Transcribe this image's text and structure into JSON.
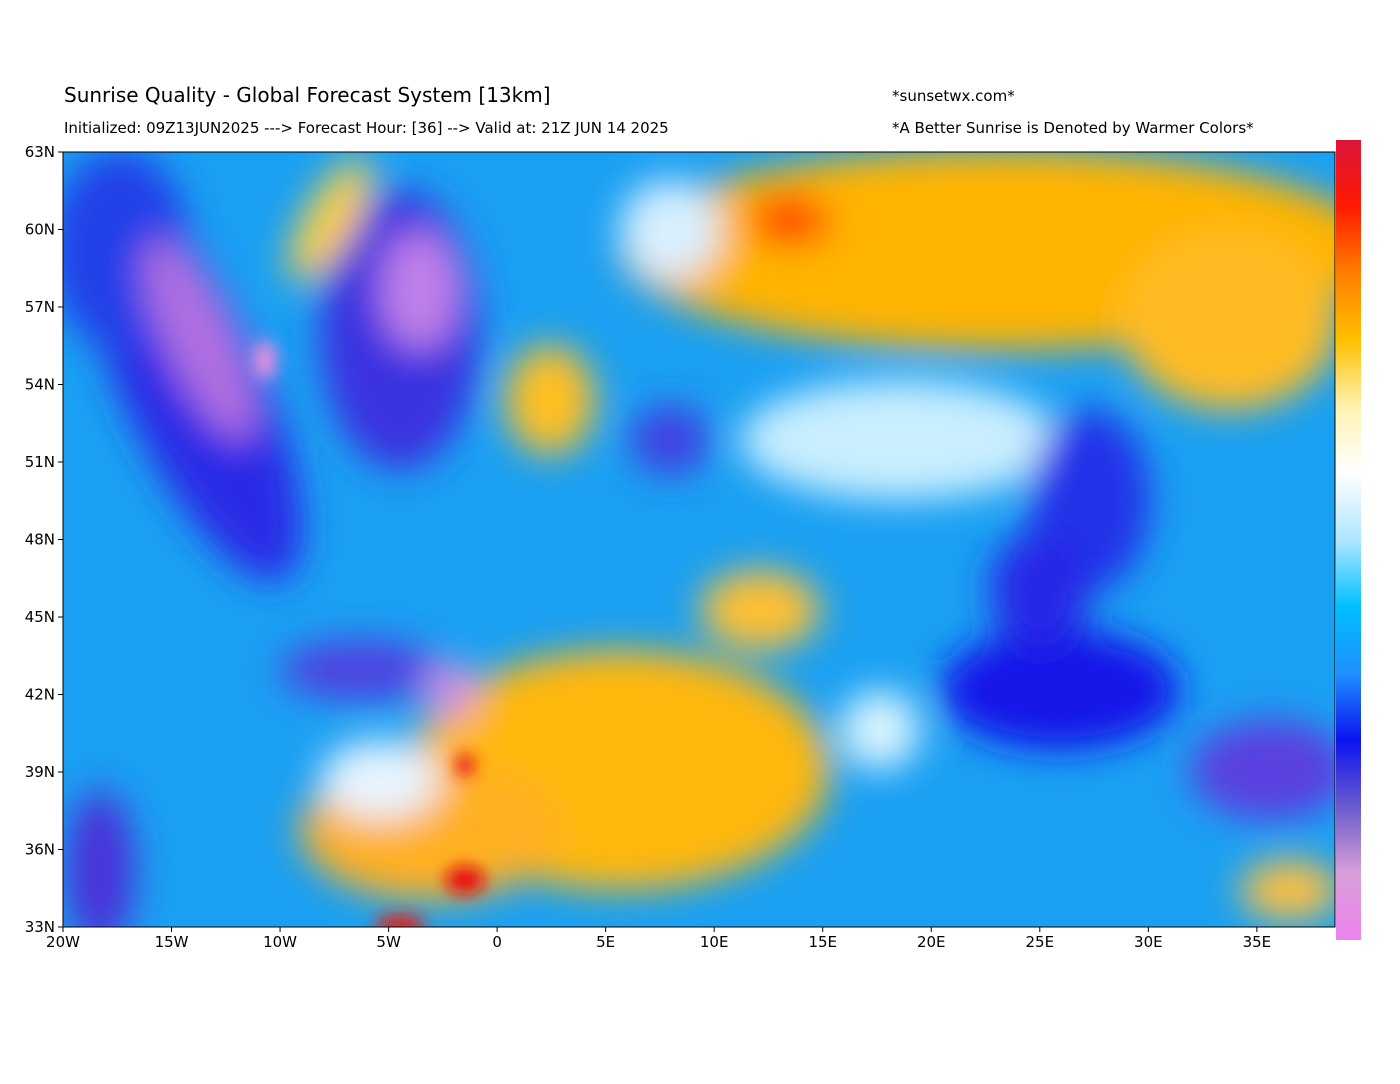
{
  "map": {
    "title": "Sunrise Quality - Global Forecast System [13km]",
    "subtitle": "Initialized: 09Z13JUN2025 ---> Forecast Hour: [36] --> Valid at: 21Z JUN 14 2025",
    "credit": "*sunsetwx.com*",
    "note": "*A Better Sunrise is Denoted by Warmer Colors*",
    "xlim": [
      -20,
      38.6
    ],
    "ylim": [
      33,
      63
    ],
    "xticks": [
      {
        "value": -20,
        "label": "20W"
      },
      {
        "value": -15,
        "label": "15W"
      },
      {
        "value": -10,
        "label": "10W"
      },
      {
        "value": -5,
        "label": "5W"
      },
      0,
      {
        "value": 5,
        "label": "5E"
      },
      {
        "value": 10,
        "label": "10E"
      },
      {
        "value": 15,
        "label": "15E"
      },
      {
        "value": 20,
        "label": "20E"
      },
      {
        "value": 25,
        "label": "25E"
      },
      {
        "value": 30,
        "label": "30E"
      },
      {
        "value": 35,
        "label": "35E"
      }
    ],
    "yticks": [
      {
        "value": 33,
        "label": "33N"
      },
      {
        "value": 36,
        "label": "36N"
      },
      {
        "value": 39,
        "label": "39N"
      },
      {
        "value": 42,
        "label": "42N"
      },
      {
        "value": 45,
        "label": "45N"
      },
      {
        "value": 48,
        "label": "48N"
      },
      {
        "value": 51,
        "label": "51N"
      },
      {
        "value": 54,
        "label": "54N"
      },
      {
        "value": 57,
        "label": "57N"
      },
      {
        "value": 60,
        "label": "60N"
      },
      {
        "value": 63,
        "label": "63N"
      }
    ],
    "colorbar_colors": [
      "#dc143c",
      "#ff1a00",
      "#ff7f00",
      "#ffc000",
      "#fff2b0",
      "#ffffff",
      "#aee6ff",
      "#00bfff",
      "#1e90ff",
      "#0a14f0",
      "#6a5acd",
      "#d8a0d8",
      "#ee82ee"
    ]
  }
}
